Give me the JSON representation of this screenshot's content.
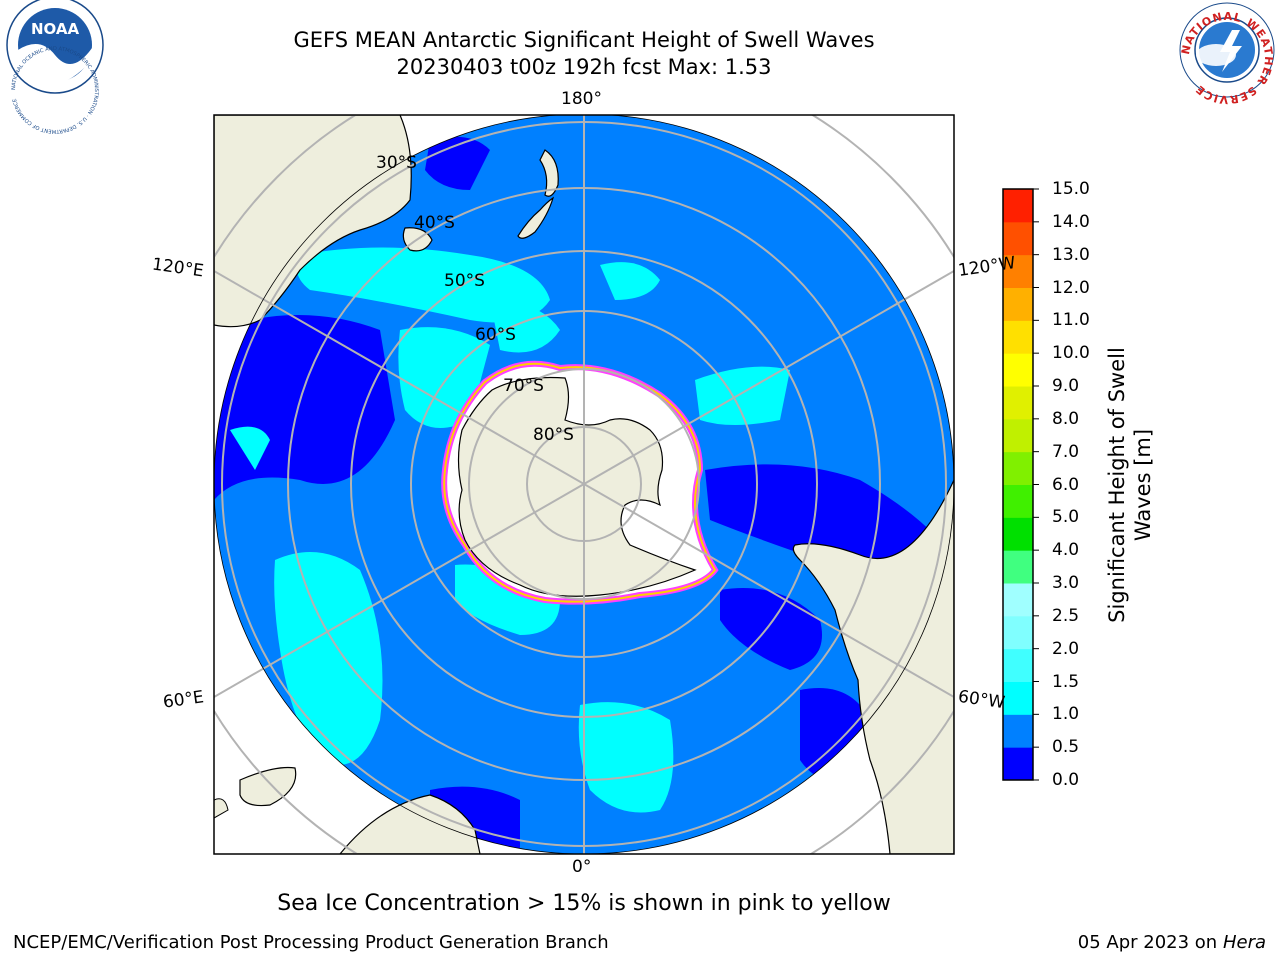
{
  "header": {
    "title_line1": "GEFS MEAN Antarctic Significant Height of Swell Waves",
    "title_line2": "20230403 t00z 192h fcst   Max: 1.53"
  },
  "logos": {
    "left": {
      "text": "NOAA",
      "ring_text": "NATIONAL OCEANIC AND ATMOSPHERIC ADMINISTRATION · U.S. DEPARTMENT OF COMMERCE"
    },
    "right": {
      "ring_text": "NATIONAL WEATHER SERVICE"
    }
  },
  "map": {
    "projection": "south-polar-stereographic",
    "longitude_labels": {
      "top": "180°",
      "bottom": "0°",
      "left_upper": "120°E",
      "left_lower": "60°E",
      "right_upper": "120°W",
      "right_lower": "60°W"
    },
    "latitude_labels": [
      "30°S",
      "40°S",
      "50°S",
      "60°S",
      "70°S",
      "80°S"
    ],
    "colors": {
      "land": "#eeeedd",
      "ice": "#ffffff",
      "grid": "#b3b3b3",
      "ocean_base": "#0080ff"
    }
  },
  "colorbar": {
    "title": "Significant Height of Swell Waves [m]",
    "tick_labels": [
      "0.0",
      "0.5",
      "1.0",
      "1.5",
      "2.0",
      "2.5",
      "3.0",
      "4.0",
      "5.0",
      "6.0",
      "7.0",
      "8.0",
      "9.0",
      "10.0",
      "11.0",
      "12.0",
      "13.0",
      "14.0",
      "15.0"
    ],
    "colors": [
      "#0000ff",
      "#0080ff",
      "#00ffff",
      "#40ffff",
      "#80ffff",
      "#a0ffff",
      "#40ff80",
      "#00e000",
      "#40f000",
      "#80f000",
      "#c0f000",
      "#e0f000",
      "#ffff00",
      "#ffe000",
      "#ffb000",
      "#ff8000",
      "#ff5000",
      "#ff2000"
    ]
  },
  "subtitle": "Sea Ice Concentration > 15% is shown in pink to yellow",
  "footer": {
    "left": "NCEP/EMC/Verification Post Processing Product Generation Branch",
    "right_prefix": "05 Apr 2023 on ",
    "right_machine": "Hera"
  }
}
